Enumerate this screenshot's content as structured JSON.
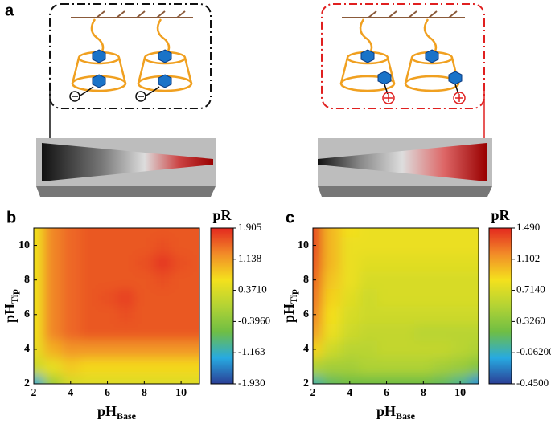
{
  "panel_labels": [
    "a",
    "b",
    "c"
  ],
  "chart_data": [
    {
      "type": "contour",
      "panel": "b",
      "xlabel": {
        "main": "pH",
        "sub": "Base"
      },
      "ylabel": {
        "main": "pH",
        "sub": "Tip"
      },
      "colorbar_title": "pR",
      "x": [
        2,
        3,
        4,
        5,
        6,
        7,
        8,
        9,
        10,
        11
      ],
      "y": [
        2,
        3,
        4,
        5,
        6,
        7,
        8,
        9,
        10,
        11
      ],
      "z": [
        [
          -1.2,
          -0.2,
          0.3,
          0.4,
          0.4,
          0.4,
          0.4,
          0.4,
          0.4,
          0.4
        ],
        [
          0.2,
          0.5,
          0.8,
          0.7,
          0.7,
          0.7,
          0.7,
          0.7,
          0.7,
          0.7
        ],
        [
          0.5,
          1.0,
          1.2,
          1.2,
          1.2,
          1.2,
          1.2,
          1.2,
          1.2,
          1.2
        ],
        [
          0.6,
          1.3,
          1.5,
          1.6,
          1.6,
          1.6,
          1.6,
          1.6,
          1.6,
          1.6
        ],
        [
          0.6,
          1.3,
          1.5,
          1.6,
          1.6,
          1.65,
          1.6,
          1.6,
          1.6,
          1.6
        ],
        [
          0.6,
          1.3,
          1.5,
          1.6,
          1.65,
          1.75,
          1.6,
          1.6,
          1.6,
          1.6
        ],
        [
          0.6,
          1.3,
          1.5,
          1.6,
          1.6,
          1.6,
          1.6,
          1.65,
          1.6,
          1.6
        ],
        [
          0.6,
          1.3,
          1.5,
          1.6,
          1.6,
          1.6,
          1.65,
          1.8,
          1.65,
          1.6
        ],
        [
          0.6,
          1.3,
          1.5,
          1.6,
          1.6,
          1.6,
          1.6,
          1.65,
          1.6,
          1.6
        ],
        [
          0.6,
          1.3,
          1.5,
          1.6,
          1.6,
          1.6,
          1.6,
          1.6,
          1.6,
          1.6
        ]
      ],
      "xlim": [
        2,
        11
      ],
      "ylim": [
        2,
        11
      ],
      "xticks": [
        2,
        4,
        6,
        8,
        10
      ],
      "yticks": [
        2,
        4,
        6,
        8,
        10
      ],
      "zlim": [
        -1.93,
        1.905
      ],
      "zticks": [
        1.905,
        1.138,
        {
          "value": 0.371,
          "label": "0.3710"
        },
        {
          "value": -0.396,
          "label": "-0.3960"
        },
        -1.163,
        {
          "value": -1.93,
          "label": "-1.930"
        }
      ],
      "colormap": [
        "#2b3f96",
        "#27aae1",
        "#6fbe44",
        "#b3d334",
        "#f4e11d",
        "#f28c28",
        "#e3281f"
      ]
    },
    {
      "type": "contour",
      "panel": "c",
      "xlabel": {
        "main": "pH",
        "sub": "Base"
      },
      "ylabel": {
        "main": "pH",
        "sub": "Tip"
      },
      "colorbar_title": "pR",
      "x": [
        2,
        3,
        4,
        5,
        6,
        7,
        8,
        9,
        10,
        11
      ],
      "y": [
        2,
        3,
        4,
        5,
        6,
        7,
        8,
        9,
        10,
        11
      ],
      "z": [
        [
          0.0,
          0.15,
          0.2,
          0.2,
          0.2,
          0.2,
          0.2,
          0.15,
          0.05,
          -0.2
        ],
        [
          0.5,
          0.45,
          0.45,
          0.5,
          0.5,
          0.5,
          0.5,
          0.45,
          0.4,
          0.3
        ],
        [
          0.9,
          0.65,
          0.55,
          0.55,
          0.6,
          0.6,
          0.6,
          0.6,
          0.55,
          0.5
        ],
        [
          1.1,
          0.8,
          0.65,
          0.6,
          0.6,
          0.6,
          0.55,
          0.55,
          0.55,
          0.55
        ],
        [
          1.2,
          0.85,
          0.7,
          0.65,
          0.65,
          0.65,
          0.65,
          0.65,
          0.65,
          0.65
        ],
        [
          1.25,
          0.9,
          0.75,
          0.65,
          0.7,
          0.7,
          0.7,
          0.7,
          0.7,
          0.7
        ],
        [
          1.3,
          0.95,
          0.8,
          0.7,
          0.7,
          0.7,
          0.7,
          0.7,
          0.7,
          0.7
        ],
        [
          1.35,
          1.0,
          0.8,
          0.75,
          0.75,
          0.75,
          0.75,
          0.75,
          0.75,
          0.75
        ],
        [
          1.4,
          1.0,
          0.8,
          0.8,
          0.8,
          0.8,
          0.8,
          0.8,
          0.8,
          0.8
        ],
        [
          1.4,
          1.0,
          0.85,
          0.8,
          0.8,
          0.8,
          0.8,
          0.8,
          0.8,
          0.8
        ]
      ],
      "xlim": [
        2,
        11
      ],
      "ylim": [
        2,
        11
      ],
      "xticks": [
        2,
        4,
        6,
        8,
        10
      ],
      "yticks": [
        2,
        4,
        6,
        8,
        10
      ],
      "zlim": [
        -0.45,
        1.49
      ],
      "zticks": [
        {
          "value": 1.49,
          "label": "1.490"
        },
        1.102,
        {
          "value": 0.714,
          "label": "0.7140"
        },
        {
          "value": 0.326,
          "label": "0.3260"
        },
        {
          "value": -0.062,
          "label": "-0.06200"
        },
        {
          "value": -0.45,
          "label": "-0.4500"
        }
      ],
      "colormap": [
        "#2b3f96",
        "#27aae1",
        "#6fbe44",
        "#b3d334",
        "#f4e11d",
        "#f28c28",
        "#e3281f"
      ]
    }
  ]
}
